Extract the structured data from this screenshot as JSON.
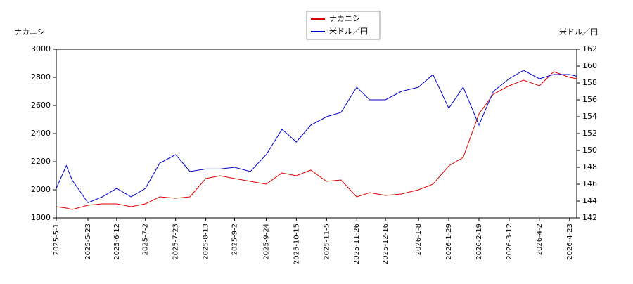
{
  "chart_data": {
    "type": "line",
    "y_label": "ナカニシ",
    "y2_label": "米ドル／円",
    "x": [
      "2025-5-1",
      "2025-5-8",
      "2025-5-12",
      "2025-5-23",
      "2025-6-2",
      "2025-6-12",
      "2025-6-22",
      "2025-7-2",
      "2025-7-12",
      "2025-7-23",
      "2025-8-2",
      "2025-8-13",
      "2025-8-23",
      "2025-9-2",
      "2025-9-13",
      "2025-9-24",
      "2025-10-5",
      "2025-10-15",
      "2025-10-25",
      "2025-11-5",
      "2025-11-15",
      "2025-11-26",
      "2025-12-5",
      "2025-12-16",
      "2025-12-27",
      "2026-1-8",
      "2026-1-18",
      "2026-1-29",
      "2026-2-8",
      "2026-2-19",
      "2026-3-1",
      "2026-3-12",
      "2026-3-22",
      "2026-4-2",
      "2026-4-12",
      "2026-4-23",
      "2026-4-28"
    ],
    "series": [
      {
        "name": "ナカニシ",
        "color": "#dd0000",
        "values": [
          1880,
          1870,
          1860,
          1890,
          1900,
          1900,
          1880,
          1900,
          1950,
          1940,
          1950,
          2080,
          2100,
          2080,
          2060,
          2040,
          2120,
          2100,
          2140,
          2060,
          2070,
          1950,
          1980,
          1960,
          1970,
          2000,
          2040,
          2170,
          2230,
          2540,
          2680,
          2740,
          2780,
          2740,
          2840,
          2800,
          2790
        ]
      },
      {
        "name": "米ドル／円",
        "color": "#0000cc",
        "axis": "y2",
        "values": [
          145.5,
          148.2,
          146.5,
          143.8,
          144.5,
          145.5,
          144.5,
          145.5,
          148.5,
          149.5,
          147.5,
          147.8,
          147.8,
          148,
          147.5,
          149.5,
          152.5,
          151,
          153,
          154,
          154.5,
          157.5,
          156,
          156,
          157,
          157.5,
          159,
          155,
          157.5,
          153,
          157,
          158.5,
          159.5,
          158.5,
          159,
          159,
          158.8
        ]
      }
    ],
    "xlim": [
      "2025-5-1",
      "2026-4-28"
    ],
    "xticks": [
      "2025-5-1",
      "2025-5-23",
      "2025-6-12",
      "2025-7-2",
      "2025-7-23",
      "2025-8-13",
      "2025-9-2",
      "2025-9-24",
      "2025-10-15",
      "2025-11-5",
      "2025-11-26",
      "2025-12-16",
      "2026-1-8",
      "2026-1-29",
      "2026-2-19",
      "2026-3-12",
      "2026-4-2",
      "2026-4-23"
    ],
    "ylim": [
      1800,
      3000
    ],
    "yticks": [
      1800,
      2000,
      2200,
      2400,
      2600,
      2800,
      3000
    ],
    "y2lim": [
      142,
      162
    ],
    "y2ticks": [
      142,
      144,
      146,
      148,
      150,
      152,
      154,
      156,
      158,
      160,
      162
    ]
  }
}
